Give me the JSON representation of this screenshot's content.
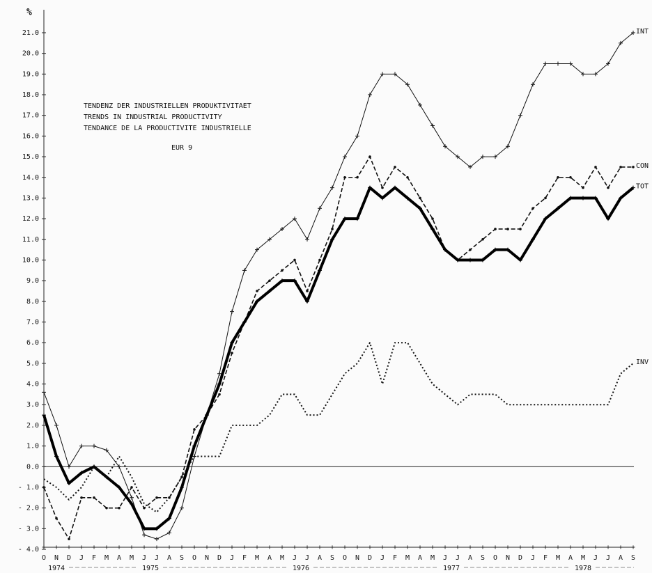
{
  "chart_data": {
    "type": "line",
    "title_lines": [
      "TENDENZ DER INDUSTRIELLEN PRODUKTIVITAET",
      "TRENDS IN INDUSTRIAL PRODUCTIVITY",
      "TENDANCE DE LA PRODUCTIVITE INDUSTRIELLE"
    ],
    "subtitle": "EUR 9",
    "y_label": "%",
    "categories": [
      "O",
      "N",
      "D",
      "J",
      "F",
      "M",
      "A",
      "M",
      "J",
      "J",
      "A",
      "S",
      "O",
      "N",
      "D",
      "J",
      "F",
      "M",
      "A",
      "M",
      "J",
      "J",
      "A",
      "S",
      "O",
      "N",
      "D",
      "J",
      "F",
      "M",
      "A",
      "M",
      "J",
      "J",
      "A",
      "S",
      "O",
      "N",
      "D",
      "J",
      "F",
      "M",
      "A",
      "M",
      "J",
      "J",
      "A",
      "S"
    ],
    "year_groups": [
      {
        "label": "1974",
        "months": 3
      },
      {
        "label": "1975",
        "months": 12
      },
      {
        "label": "1976",
        "months": 12
      },
      {
        "label": "1977",
        "months": 12
      },
      {
        "label": "1978",
        "months": 9
      }
    ],
    "series": [
      {
        "name": "INT",
        "color": "#111",
        "width": 1,
        "dash": "none",
        "marker": "plus",
        "values": [
          3.6,
          2.0,
          0.0,
          1.0,
          1.0,
          0.8,
          0.0,
          -1.5,
          -3.3,
          -3.5,
          -3.2,
          -2.0,
          0.5,
          2.5,
          4.5,
          7.5,
          9.5,
          10.5,
          11.0,
          11.5,
          12.0,
          11.0,
          12.5,
          13.5,
          15.0,
          16.0,
          18.0,
          19.0,
          19.0,
          18.5,
          17.5,
          16.5,
          15.5,
          15.0,
          14.5,
          15.0,
          15.0,
          15.5,
          17.0,
          18.5,
          19.5,
          19.5,
          19.5,
          19.0,
          19.0,
          19.5,
          20.5,
          21.0
        ]
      },
      {
        "name": "CON",
        "color": "#111",
        "width": 1.6,
        "dash": "6 3",
        "marker": "dot",
        "values": [
          -1.0,
          -2.5,
          -3.5,
          -1.5,
          -1.5,
          -2.0,
          -2.0,
          -1.0,
          -2.0,
          -1.5,
          -1.5,
          -0.5,
          1.8,
          2.5,
          3.5,
          5.5,
          7.0,
          8.5,
          9.0,
          9.5,
          10.0,
          8.5,
          10.0,
          11.5,
          14.0,
          14.0,
          15.0,
          13.5,
          14.5,
          14.0,
          13.0,
          12.0,
          10.5,
          10.0,
          10.5,
          11.0,
          11.5,
          11.5,
          11.5,
          12.5,
          13.0,
          14.0,
          14.0,
          13.5,
          14.5,
          13.5,
          14.5,
          14.5
        ]
      },
      {
        "name": "TOT",
        "color": "#000",
        "width": 4,
        "dash": "none",
        "marker": "plus",
        "values": [
          2.5,
          0.5,
          -0.8,
          -0.3,
          0.0,
          -0.5,
          -1.0,
          -1.8,
          -3.0,
          -3.0,
          -2.5,
          -1.0,
          1.0,
          2.5,
          4.0,
          6.0,
          7.0,
          8.0,
          8.5,
          9.0,
          9.0,
          8.0,
          9.5,
          11.0,
          12.0,
          12.0,
          13.5,
          13.0,
          13.5,
          13.0,
          12.5,
          11.5,
          10.5,
          10.0,
          10.0,
          10.0,
          10.5,
          10.5,
          10.0,
          11.0,
          12.0,
          12.5,
          13.0,
          13.0,
          13.0,
          12.0,
          13.0,
          13.5
        ]
      },
      {
        "name": "INV",
        "color": "#111",
        "width": 2,
        "dash": "2 3",
        "marker": "none",
        "values": [
          -0.6,
          -1.0,
          -1.6,
          -1.0,
          0.0,
          -0.5,
          0.5,
          -0.5,
          -1.8,
          -2.2,
          -1.5,
          -0.5,
          0.5,
          0.5,
          0.5,
          2.0,
          2.0,
          2.0,
          2.5,
          3.5,
          3.5,
          2.5,
          2.5,
          3.5,
          4.5,
          5.0,
          6.0,
          4.0,
          6.0,
          6.0,
          5.0,
          4.0,
          3.5,
          3.0,
          3.5,
          3.5,
          3.5,
          3.0,
          3.0,
          3.0,
          3.0,
          3.0,
          3.0,
          3.0,
          3.0,
          3.0,
          4.5,
          5.0
        ]
      }
    ],
    "ylim": [
      -4,
      21
    ],
    "yticks": [
      {
        "value": -4,
        "label": "- 4.0"
      },
      {
        "value": -3,
        "label": "- 3.0"
      },
      {
        "value": -2,
        "label": "- 2.0"
      },
      {
        "value": -1,
        "label": "- 1.0"
      },
      {
        "value": 0,
        "label": "0.0"
      },
      {
        "value": 1,
        "label": "1.0"
      },
      {
        "value": 2,
        "label": "2.0"
      },
      {
        "value": 3,
        "label": "3.0"
      },
      {
        "value": 4,
        "label": "4.0"
      },
      {
        "value": 5,
        "label": "5.0"
      },
      {
        "value": 6,
        "label": "6.0"
      },
      {
        "value": 7,
        "label": "7.0"
      },
      {
        "value": 8,
        "label": "8.0"
      },
      {
        "value": 9,
        "label": "9.0"
      },
      {
        "value": 10,
        "label": "10.0"
      },
      {
        "value": 11,
        "label": "11.0"
      },
      {
        "value": 12,
        "label": "12.0"
      },
      {
        "value": 13,
        "label": "13.0"
      },
      {
        "value": 14,
        "label": "14.0"
      },
      {
        "value": 15,
        "label": "15.0"
      },
      {
        "value": 16,
        "label": "16.0"
      },
      {
        "value": 17,
        "label": "17.0"
      },
      {
        "value": 18,
        "label": "18.0"
      },
      {
        "value": 19,
        "label": "19.0"
      },
      {
        "value": 20,
        "label": "20.0"
      },
      {
        "value": 21,
        "label": "21.0"
      }
    ],
    "zero_line": true
  }
}
